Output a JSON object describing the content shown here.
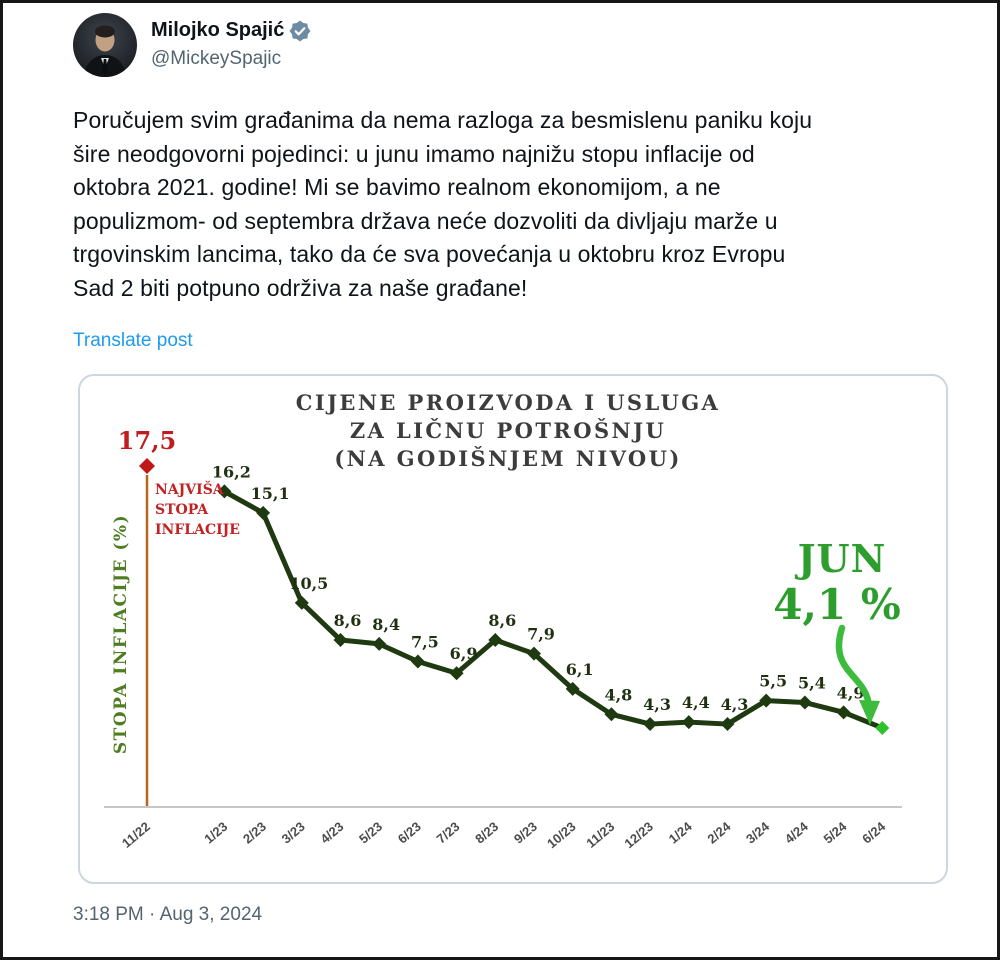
{
  "theme": {
    "link_color": "#1d9bf0",
    "badge_color": "#6d8ca4",
    "text_primary": "#0f1419",
    "text_secondary": "#536471"
  },
  "post": {
    "author": "Milojko Spajić",
    "handle": "@MickeySpajic",
    "verified": true,
    "body_lines": [
      "Poručujem svim građanima da nema razloga za besmislenu paniku koju",
      "šire neodgovorni pojedinci: u junu imamo najnižu stopu inflacije od",
      "oktobra 2021. godine! Mi se bavimo realnom ekonomijom, a ne",
      "populizmom- od septembra država neće  dozvoliti da divljaju marže u",
      "trgovinskim lancima, tako da će sva povećanja u oktobru kroz Evropu",
      "Sad 2 biti potpuno održiva za naše građane!"
    ],
    "translate_link": "Translate post",
    "timestamp": "3:18 PM · Aug 3, 2024"
  },
  "chart_data": {
    "type": "line",
    "title_lines": [
      "CIJENE PROIZVODA I USLUGA",
      "ZA LIČNU POTROŠNJU",
      "(NA GODIŠNJEM NIVOU)"
    ],
    "ylabel": "STOPA INFLACIJE (%)",
    "x": [
      "11/22",
      "1/23",
      "2/23",
      "3/23",
      "4/23",
      "5/23",
      "6/23",
      "7/23",
      "8/23",
      "9/23",
      "10/23",
      "11/23",
      "12/23",
      "1/24",
      "2/24",
      "3/24",
      "4/24",
      "5/24",
      "6/24"
    ],
    "values": [
      17.5,
      16.2,
      15.1,
      10.5,
      8.6,
      8.4,
      7.5,
      6.9,
      8.6,
      7.9,
      6.1,
      4.8,
      4.3,
      4.4,
      4.3,
      5.5,
      5.4,
      4.9,
      4.1
    ],
    "value_labels": [
      "17,5",
      "16,2",
      "15,1",
      "10,5",
      "8,6",
      "8,4",
      "7,5",
      "6,9",
      "8,6",
      "7,9",
      "6,1",
      "4,8",
      "4,3",
      "4,4",
      "4,3",
      "5,5",
      "5,4",
      "4,9",
      "4,1"
    ],
    "peak_annotation": {
      "value_label": "17,5",
      "caption_lines": [
        "NAJVIŠA",
        "STOPA",
        "INFLACIJE"
      ]
    },
    "latest_annotation": {
      "month": "JUN",
      "value_label": "4,1 %"
    },
    "ylim": [
      0,
      18
    ],
    "grid": "off",
    "legend": "none",
    "colors": {
      "line": "#1f3a10",
      "marker": "#1f3a10",
      "first_marker": "#c01818",
      "last_marker": "#2ec22e",
      "arrow": "#3cbb3c",
      "peak_text": "#bf1d1d",
      "latest_text": "#2d9e2d",
      "drop_line": "#b9631f",
      "axis": "#c6c6c6",
      "title": "#3c3c3c",
      "ylabel_color": "#4f7d23",
      "tick_color": "#4c4c4c"
    }
  }
}
